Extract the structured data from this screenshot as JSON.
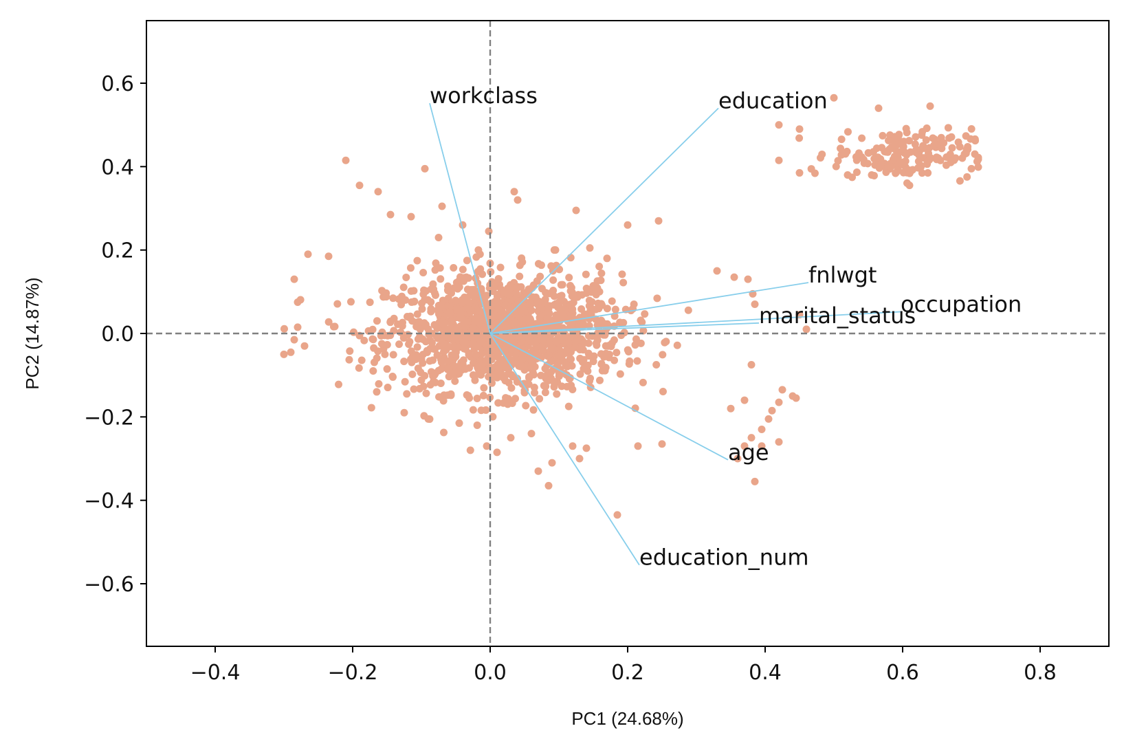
{
  "chart_data": {
    "type": "scatter",
    "title": "",
    "xlabel": "PC1 (24.68%)",
    "ylabel": "PC2 (14.87%)",
    "xlim": [
      -0.5,
      0.9
    ],
    "ylim": [
      -0.75,
      0.75
    ],
    "xticks": [
      -0.4,
      -0.2,
      0.0,
      0.2,
      0.4,
      0.6,
      0.8
    ],
    "xtick_labels": [
      "−0.4",
      "−0.2",
      "0.0",
      "0.2",
      "0.4",
      "0.6",
      "0.8"
    ],
    "yticks": [
      -0.6,
      -0.4,
      -0.2,
      0.0,
      0.2,
      0.4,
      0.6
    ],
    "ytick_labels": [
      "−0.6",
      "−0.4",
      "−0.2",
      "0.0",
      "0.2",
      "0.4",
      "0.6"
    ],
    "grid": false,
    "reference_lines": {
      "x": 0.0,
      "y": 0.0,
      "style": "dashed",
      "color": "#808080"
    },
    "point_color": "#E9A58A",
    "vector_color": "#87CEEB",
    "vectors": [
      {
        "name": "workclass",
        "x": -0.088,
        "y": 0.552
      },
      {
        "name": "education",
        "x": 0.332,
        "y": 0.54
      },
      {
        "name": "fnlwgt",
        "x": 0.463,
        "y": 0.122
      },
      {
        "name": "occupation",
        "x": 0.597,
        "y": 0.052
      },
      {
        "name": "marital_status",
        "x": 0.391,
        "y": 0.025
      },
      {
        "name": "age",
        "x": 0.346,
        "y": -0.303
      },
      {
        "name": "education_num",
        "x": 0.217,
        "y": -0.555
      }
    ],
    "clusters": [
      {
        "name": "main",
        "cx": 0.02,
        "cy": 0.0,
        "sx": 0.085,
        "sy": 0.07,
        "count": 1400,
        "xrange": [
          -0.3,
          0.37
        ],
        "yrange": [
          -0.28,
          0.2
        ]
      },
      {
        "name": "upper-right",
        "cx": 0.6,
        "cy": 0.43,
        "sx": 0.05,
        "sy": 0.03,
        "count": 170,
        "xrange": [
          0.43,
          0.71
        ],
        "yrange": [
          0.36,
          0.55
        ]
      }
    ],
    "points": [
      {
        "x": -0.21,
        "y": 0.415
      },
      {
        "x": -0.095,
        "y": 0.395
      },
      {
        "x": -0.19,
        "y": 0.355
      },
      {
        "x": -0.163,
        "y": 0.34
      },
      {
        "x": -0.07,
        "y": 0.305
      },
      {
        "x": -0.145,
        "y": 0.285
      },
      {
        "x": -0.115,
        "y": 0.28
      },
      {
        "x": -0.04,
        "y": 0.26
      },
      {
        "x": -0.002,
        "y": 0.245
      },
      {
        "x": 0.035,
        "y": 0.34
      },
      {
        "x": 0.04,
        "y": 0.32
      },
      {
        "x": 0.125,
        "y": 0.295
      },
      {
        "x": 0.2,
        "y": 0.26
      },
      {
        "x": 0.245,
        "y": 0.27
      },
      {
        "x": -0.075,
        "y": 0.23
      },
      {
        "x": -0.285,
        "y": 0.13
      },
      {
        "x": -0.265,
        "y": 0.19
      },
      {
        "x": -0.235,
        "y": 0.185
      },
      {
        "x": 0.095,
        "y": 0.2
      },
      {
        "x": 0.145,
        "y": 0.205
      },
      {
        "x": 0.17,
        "y": 0.18
      },
      {
        "x": 0.33,
        "y": 0.15
      },
      {
        "x": 0.355,
        "y": 0.135
      },
      {
        "x": 0.375,
        "y": 0.13
      },
      {
        "x": 0.382,
        "y": 0.095
      },
      {
        "x": 0.385,
        "y": 0.07
      },
      {
        "x": 0.45,
        "y": 0.045
      },
      {
        "x": 0.46,
        "y": 0.01
      },
      {
        "x": 0.38,
        "y": -0.075
      },
      {
        "x": 0.44,
        "y": -0.15
      },
      {
        "x": 0.42,
        "y": -0.165
      },
      {
        "x": 0.41,
        "y": -0.185
      },
      {
        "x": 0.405,
        "y": -0.205
      },
      {
        "x": 0.395,
        "y": -0.23
      },
      {
        "x": 0.38,
        "y": -0.25
      },
      {
        "x": 0.42,
        "y": -0.26
      },
      {
        "x": 0.395,
        "y": -0.27
      },
      {
        "x": 0.37,
        "y": -0.27
      },
      {
        "x": 0.36,
        "y": -0.3
      },
      {
        "x": 0.385,
        "y": -0.355
      },
      {
        "x": 0.445,
        "y": -0.155
      },
      {
        "x": 0.425,
        "y": -0.135
      },
      {
        "x": 0.37,
        "y": -0.16
      },
      {
        "x": 0.35,
        "y": -0.18
      },
      {
        "x": -0.3,
        "y": -0.05
      },
      {
        "x": -0.29,
        "y": -0.045
      },
      {
        "x": -0.285,
        "y": -0.015
      },
      {
        "x": -0.28,
        "y": 0.015
      },
      {
        "x": -0.28,
        "y": 0.075
      },
      {
        "x": -0.27,
        "y": -0.03
      },
      {
        "x": 0.085,
        "y": -0.365
      },
      {
        "x": 0.07,
        "y": -0.33
      },
      {
        "x": 0.09,
        "y": -0.31
      },
      {
        "x": 0.13,
        "y": -0.3
      },
      {
        "x": 0.185,
        "y": -0.435
      },
      {
        "x": -0.005,
        "y": -0.27
      },
      {
        "x": 0.01,
        "y": -0.285
      },
      {
        "x": 0.03,
        "y": -0.25
      },
      {
        "x": 0.06,
        "y": -0.24
      },
      {
        "x": 0.12,
        "y": -0.27
      },
      {
        "x": 0.14,
        "y": -0.275
      },
      {
        "x": 0.215,
        "y": -0.27
      },
      {
        "x": 0.25,
        "y": -0.265
      },
      {
        "x": -0.125,
        "y": -0.19
      },
      {
        "x": -0.09,
        "y": -0.205
      },
      {
        "x": -0.045,
        "y": -0.215
      },
      {
        "x": -0.165,
        "y": -0.14
      },
      {
        "x": 0.5,
        "y": 0.565
      },
      {
        "x": 0.565,
        "y": 0.54
      },
      {
        "x": 0.64,
        "y": 0.545
      },
      {
        "x": 0.42,
        "y": 0.5
      },
      {
        "x": 0.45,
        "y": 0.49
      },
      {
        "x": 0.7,
        "y": 0.395
      },
      {
        "x": 0.61,
        "y": 0.355
      },
      {
        "x": 0.42,
        "y": 0.415
      },
      {
        "x": 0.45,
        "y": 0.385
      },
      {
        "x": 0.52,
        "y": 0.38
      },
      {
        "x": 0.555,
        "y": 0.38
      },
      {
        "x": 0.69,
        "y": 0.43
      },
      {
        "x": 0.705,
        "y": 0.43
      },
      {
        "x": 0.67,
        "y": 0.41
      }
    ]
  }
}
